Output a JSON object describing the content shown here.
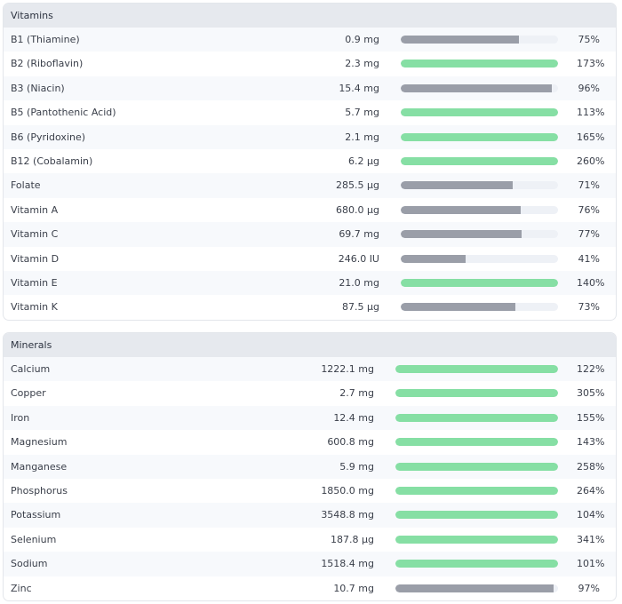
{
  "colors": {
    "over": "#86dfa4",
    "under": "#9a9ea8",
    "track": "#eef1f6"
  },
  "vitamins": {
    "title": "Vitamins",
    "items": [
      {
        "name": "B1 (Thiamine)",
        "amount": "0.9 mg",
        "percent": 75,
        "label": "75%"
      },
      {
        "name": "B2 (Riboflavin)",
        "amount": "2.3 mg",
        "percent": 173,
        "label": "173%"
      },
      {
        "name": "B3 (Niacin)",
        "amount": "15.4 mg",
        "percent": 96,
        "label": "96%"
      },
      {
        "name": "B5 (Pantothenic Acid)",
        "amount": "5.7 mg",
        "percent": 113,
        "label": "113%"
      },
      {
        "name": "B6 (Pyridoxine)",
        "amount": "2.1 mg",
        "percent": 165,
        "label": "165%"
      },
      {
        "name": "B12 (Cobalamin)",
        "amount": "6.2 µg",
        "percent": 260,
        "label": "260%"
      },
      {
        "name": "Folate",
        "amount": "285.5 µg",
        "percent": 71,
        "label": "71%"
      },
      {
        "name": "Vitamin A",
        "amount": "680.0 µg",
        "percent": 76,
        "label": "76%"
      },
      {
        "name": "Vitamin C",
        "amount": "69.7 mg",
        "percent": 77,
        "label": "77%"
      },
      {
        "name": "Vitamin D",
        "amount": "246.0 IU",
        "percent": 41,
        "label": "41%"
      },
      {
        "name": "Vitamin E",
        "amount": "21.0 mg",
        "percent": 140,
        "label": "140%"
      },
      {
        "name": "Vitamin K",
        "amount": "87.5 µg",
        "percent": 73,
        "label": "73%"
      }
    ]
  },
  "minerals": {
    "title": "Minerals",
    "items": [
      {
        "name": "Calcium",
        "amount": "1222.1 mg",
        "percent": 122,
        "label": "122%"
      },
      {
        "name": "Copper",
        "amount": "2.7 mg",
        "percent": 305,
        "label": "305%"
      },
      {
        "name": "Iron",
        "amount": "12.4 mg",
        "percent": 155,
        "label": "155%"
      },
      {
        "name": "Magnesium",
        "amount": "600.8 mg",
        "percent": 143,
        "label": "143%"
      },
      {
        "name": "Manganese",
        "amount": "5.9 mg",
        "percent": 258,
        "label": "258%"
      },
      {
        "name": "Phosphorus",
        "amount": "1850.0 mg",
        "percent": 264,
        "label": "264%"
      },
      {
        "name": "Potassium",
        "amount": "3548.8 mg",
        "percent": 104,
        "label": "104%"
      },
      {
        "name": "Selenium",
        "amount": "187.8 µg",
        "percent": 341,
        "label": "341%"
      },
      {
        "name": "Sodium",
        "amount": "1518.4 mg",
        "percent": 101,
        "label": "101%"
      },
      {
        "name": "Zinc",
        "amount": "10.7 mg",
        "percent": 97,
        "label": "97%"
      }
    ]
  }
}
